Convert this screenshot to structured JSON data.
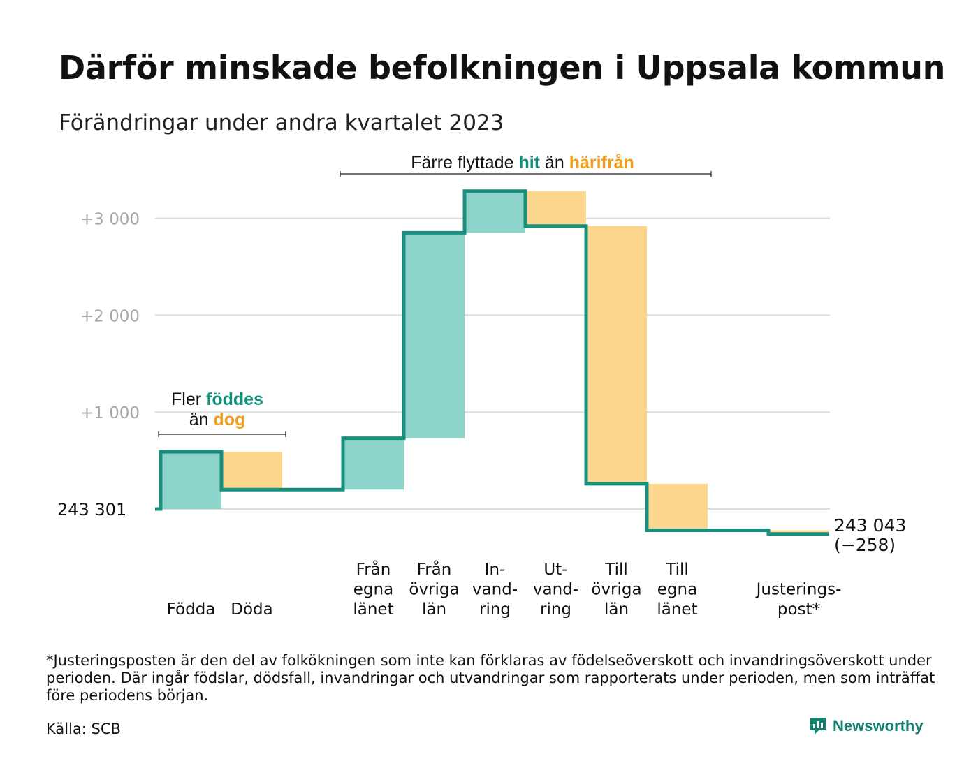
{
  "title": "Därför minskade befolkningen i Uppsala kommun",
  "subtitle": "Förändringar under andra kvartalet 2023",
  "chart_data": {
    "type": "waterfall",
    "start_value": 243301,
    "start_label": "243 301",
    "end_label_value": "243 043",
    "end_label_change": "(−258)",
    "y_ticks": [
      {
        "value": 1000,
        "label": "+1 000"
      },
      {
        "value": 2000,
        "label": "+2 000"
      },
      {
        "value": 3000,
        "label": "+3 000"
      }
    ],
    "ylim": [
      -350,
      3350
    ],
    "grid": true,
    "steps": [
      {
        "label_lines": [
          "Födda"
        ],
        "change": 590
      },
      {
        "label_lines": [
          "Döda"
        ],
        "change": -390
      },
      {
        "label_lines": [
          ""
        ],
        "change": 0
      },
      {
        "label_lines": [
          "Från",
          "egna",
          "länet"
        ],
        "change": 530
      },
      {
        "label_lines": [
          "Från",
          "övriga",
          "län"
        ],
        "change": 2120
      },
      {
        "label_lines": [
          "In-",
          "vand-",
          "ring"
        ],
        "change": 430
      },
      {
        "label_lines": [
          "Ut-",
          "vand-",
          "ring"
        ],
        "change": -360
      },
      {
        "label_lines": [
          "Till",
          "övriga",
          "län"
        ],
        "change": -2660
      },
      {
        "label_lines": [
          "Till",
          "egna",
          "länet"
        ],
        "change": -480
      },
      {
        "label_lines": [
          ""
        ],
        "change": 0
      },
      {
        "label_lines": [
          "Justerings-",
          "post*"
        ],
        "change": -38
      }
    ],
    "annotations": [
      {
        "parts": [
          {
            "text": "Fler ",
            "tone": "plain"
          },
          {
            "text": "föddes",
            "tone": "positive"
          }
        ],
        "parts2": [
          {
            "text": "än ",
            "tone": "plain"
          },
          {
            "text": "dog",
            "tone": "negative"
          }
        ]
      },
      {
        "parts": [
          {
            "text": "Färre flyttade ",
            "tone": "plain"
          },
          {
            "text": "hit",
            "tone": "positive"
          },
          {
            "text": " än ",
            "tone": "plain"
          },
          {
            "text": "härifrån",
            "tone": "negative"
          }
        ]
      }
    ],
    "colors": {
      "positive_fill": "#8dd5cb",
      "negative_fill": "#fcd68c",
      "line": "#19907e",
      "positive_text": "#15907c",
      "negative_text": "#ef9f1c",
      "grid": "#dddddd",
      "tick_text": "#a6a6a6"
    }
  },
  "footnote": "*Justeringsposten är den del av folkökningen som inte kan förklaras av födelseöverskott och invandringsöverskott under perioden. Där ingår födslar, dödsfall, invandringar och utvandringar som rapporterats under perioden, men som inträffat före periodens början.",
  "source": "Källa: SCB",
  "brand": {
    "name": "Newsworthy",
    "icon": "newsworthy-logo-icon",
    "color": "#15826f"
  }
}
